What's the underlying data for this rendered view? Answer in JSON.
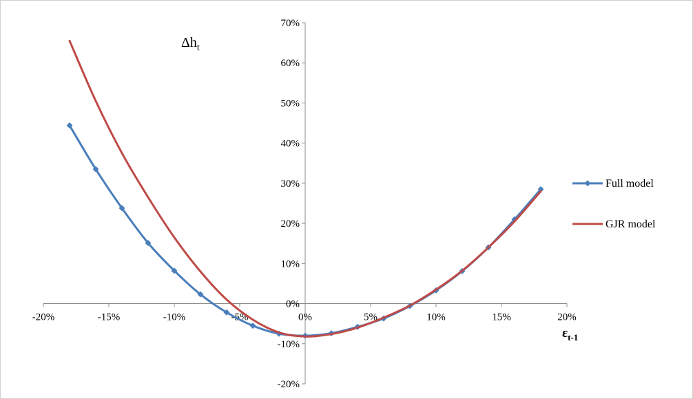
{
  "chart_data": {
    "type": "line",
    "ylabel_main": "Δh",
    "ylabel_sub": "t",
    "xlabel_main": "ε",
    "xlabel_sub": "t-1",
    "x_ticks": [
      "-20%",
      "-15%",
      "-10%",
      "-5%",
      "0%",
      "5%",
      "10%",
      "15%",
      "20%"
    ],
    "y_ticks": [
      "-20%",
      "-10%",
      "0%",
      "10%",
      "20%",
      "30%",
      "40%",
      "50%",
      "60%",
      "70%"
    ],
    "xlim": [
      -0.2,
      0.2
    ],
    "ylim": [
      -0.2,
      0.7
    ],
    "grid": false,
    "legend_position": "right",
    "x": [
      -0.18,
      -0.16,
      -0.14,
      -0.12,
      -0.1,
      -0.08,
      -0.06,
      -0.04,
      -0.02,
      0.0,
      0.02,
      0.04,
      0.06,
      0.08,
      0.1,
      0.12,
      0.14,
      0.16,
      0.18
    ],
    "series": [
      {
        "name": "Full model",
        "color": "#4a7ebb",
        "marker": "diamond",
        "values": [
          0.444,
          0.335,
          0.238,
          0.151,
          0.082,
          0.023,
          -0.022,
          -0.055,
          -0.075,
          -0.08,
          -0.074,
          -0.058,
          -0.037,
          -0.006,
          0.033,
          0.081,
          0.14,
          0.21,
          0.285
        ]
      },
      {
        "name": "GJR model",
        "color": "#be4b48",
        "marker": "none",
        "values": [
          0.655,
          0.505,
          0.375,
          0.265,
          0.165,
          0.08,
          0.01,
          -0.04,
          -0.072,
          -0.082,
          -0.076,
          -0.06,
          -0.035,
          -0.005,
          0.035,
          0.082,
          0.14,
          0.205,
          0.28
        ]
      }
    ]
  }
}
